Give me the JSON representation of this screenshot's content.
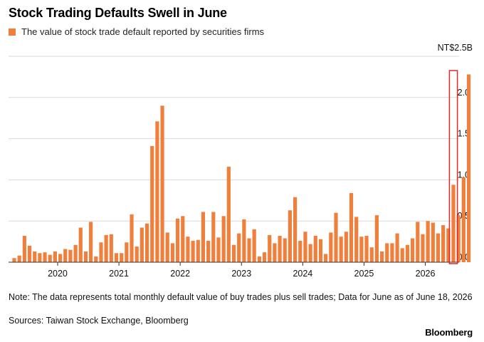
{
  "title": "Stock Trading Defaults Swell in June",
  "legend_label": "The value of stock trade default reported by securities firms",
  "note": "Note: The data represents total monthly default value of buy trades plus sell trades; Data for June as of June 18, 2026",
  "sources": "Sources: Taiwan Stock Exchange, Bloomberg",
  "brand": "Bloomberg",
  "colors": {
    "bar": "#f07f3c",
    "highlight_box": "#e0282a",
    "grid": "#d9d9d9",
    "axis": "#333333"
  },
  "chart_data": {
    "type": "bar",
    "title": "Stock Trading Defaults Swell in June",
    "ylabel": "",
    "y_unit_label": "NT$2.5B",
    "ylim": [
      0,
      2.5
    ],
    "y_ticks": [
      {
        "value": 0.0,
        "label": "0.0"
      },
      {
        "value": 0.5,
        "label": "0.5"
      },
      {
        "value": 1.0,
        "label": "1.0"
      },
      {
        "value": 1.5,
        "label": "1.5"
      },
      {
        "value": 2.0,
        "label": "2.0"
      },
      {
        "value": 2.5,
        "label": "NT$2.5B"
      }
    ],
    "y_axis_position": "right",
    "grid": true,
    "x_range": [
      "2019-04",
      "2026-06"
    ],
    "x_ticks": [
      {
        "month": "2020-01",
        "label": "2020"
      },
      {
        "month": "2021-01",
        "label": "2021"
      },
      {
        "month": "2022-01",
        "label": "2022"
      },
      {
        "month": "2023-01",
        "label": "2023"
      },
      {
        "month": "2024-01",
        "label": "2024"
      },
      {
        "month": "2025-01",
        "label": "2025"
      },
      {
        "month": "2026-01",
        "label": "2026"
      }
    ],
    "highlight": {
      "from": "2026-06",
      "to": "2026-06"
    },
    "series": [
      {
        "name": "The value of stock trade default reported by securities firms",
        "values": [
          0.05,
          0.08,
          0.32,
          0.2,
          0.13,
          0.11,
          0.12,
          0.09,
          0.13,
          0.1,
          0.16,
          0.15,
          0.21,
          0.42,
          0.13,
          0.49,
          0.07,
          0.24,
          0.33,
          0.34,
          0.11,
          0.11,
          0.24,
          0.58,
          0.19,
          0.42,
          0.47,
          1.41,
          1.71,
          1.9,
          0.36,
          0.23,
          0.53,
          0.56,
          0.31,
          0.26,
          0.27,
          0.61,
          0.26,
          0.61,
          0.3,
          0.56,
          1.16,
          0.21,
          0.35,
          0.52,
          0.29,
          0.4,
          0.07,
          0.12,
          0.33,
          0.23,
          0.32,
          0.29,
          0.63,
          0.79,
          0.26,
          0.37,
          0.22,
          0.32,
          0.28,
          0.1,
          0.36,
          0.6,
          0.31,
          0.37,
          0.84,
          0.55,
          0.31,
          0.32,
          0.18,
          0.57,
          0.13,
          0.23,
          0.23,
          0.35,
          0.17,
          0.21,
          0.29,
          0.49,
          0.34,
          0.5,
          0.48,
          0.35,
          0.45,
          0.41,
          0.94,
          0.57,
          1.03,
          2.28
        ]
      }
    ]
  }
}
